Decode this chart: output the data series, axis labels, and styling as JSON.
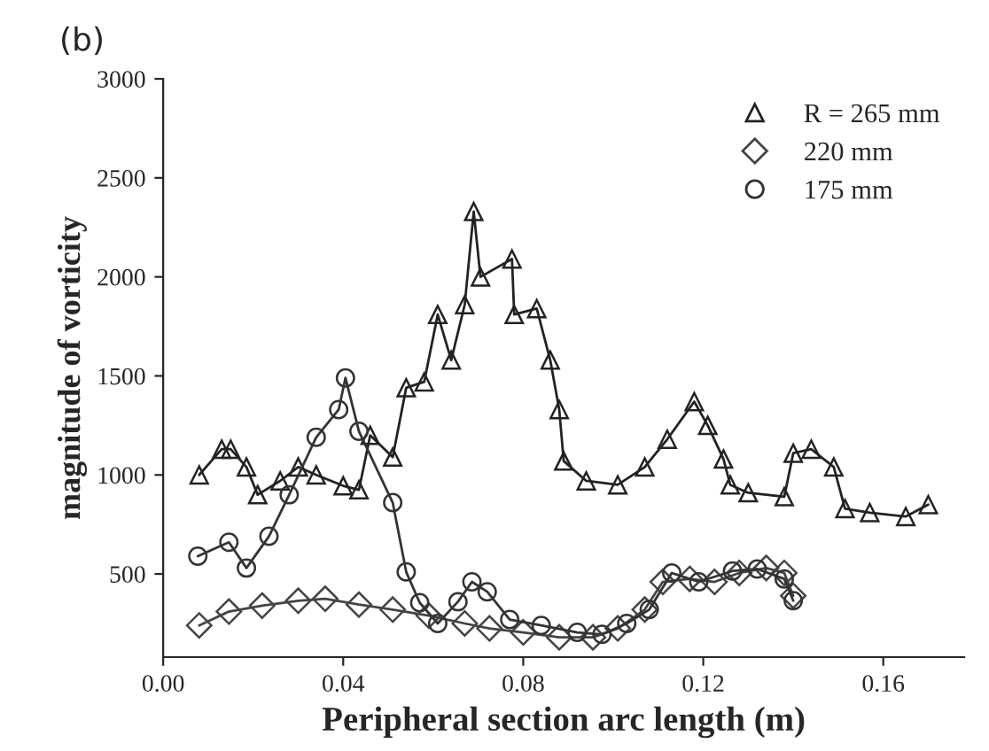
{
  "chart_data": {
    "type": "line",
    "xlabel": "Peripheral section arc length (m)",
    "ylabel": "magnitude of vorticity",
    "annotations": [
      "(b)"
    ],
    "xlim": [
      0,
      0.178
    ],
    "ylim": [
      80,
      3000
    ],
    "xticks": [
      {
        "value": 0,
        "label": "0.00"
      },
      0.04,
      0.08,
      0.12,
      0.16
    ],
    "yticks": [
      500,
      1000,
      1500,
      2000,
      2500,
      3000
    ],
    "legend": "top right",
    "grid": false,
    "series": [
      {
        "name": "R = 265 mm",
        "color": "#222222",
        "marker": "triangle",
        "x": [
          0.008,
          0.013,
          0.015,
          0.0185,
          0.021,
          0.026,
          0.03,
          0.034,
          0.04,
          0.0435,
          0.046,
          0.051,
          0.054,
          0.058,
          0.061,
          0.064,
          0.067,
          0.069,
          0.0705,
          0.0775,
          0.078,
          0.083,
          0.086,
          0.088,
          0.089,
          0.094,
          0.101,
          0.107,
          0.112,
          0.118,
          0.121,
          0.1245,
          0.126,
          0.13,
          0.138,
          0.14,
          0.144,
          0.149,
          0.1515,
          0.157,
          0.165,
          0.17
        ],
        "values": [
          1000,
          1130,
          1130,
          1040,
          900,
          970,
          1040,
          1000,
          945,
          925,
          1200,
          1090,
          1440,
          1470,
          1810,
          1580,
          1860,
          2330,
          2000,
          2090,
          1810,
          1840,
          1580,
          1330,
          1070,
          970,
          950,
          1040,
          1180,
          1370,
          1250,
          1080,
          950,
          910,
          890,
          1110,
          1130,
          1040,
          830,
          810,
          790,
          850
        ]
      },
      {
        "name": "220 mm",
        "color": "#444444",
        "marker": "diamond",
        "x": [
          0.008,
          0.0146,
          0.022,
          0.03,
          0.036,
          0.0435,
          0.051,
          0.059,
          0.067,
          0.0725,
          0.08,
          0.088,
          0.0955,
          0.101,
          0.107,
          0.111,
          0.117,
          0.1225,
          0.128,
          0.134,
          0.138,
          0.14
        ],
        "values": [
          240,
          310,
          340,
          365,
          375,
          345,
          320,
          290,
          250,
          225,
          205,
          180,
          180,
          225,
          320,
          460,
          475,
          460,
          505,
          530,
          505,
          390
        ]
      },
      {
        "name": "175 mm",
        "color": "#333333",
        "marker": "circle",
        "x": [
          0.0077,
          0.0146,
          0.0185,
          0.0235,
          0.028,
          0.034,
          0.039,
          0.0405,
          0.0435,
          0.051,
          0.054,
          0.057,
          0.061,
          0.0655,
          0.0686,
          0.072,
          0.077,
          0.084,
          0.092,
          0.0975,
          0.103,
          0.108,
          0.113,
          0.119,
          0.1265,
          0.132,
          0.138,
          0.14
        ],
        "values": [
          590,
          660,
          530,
          690,
          900,
          1190,
          1330,
          1490,
          1220,
          860,
          510,
          355,
          250,
          360,
          460,
          410,
          270,
          240,
          205,
          195,
          250,
          320,
          505,
          460,
          515,
          525,
          475,
          365
        ]
      }
    ]
  }
}
